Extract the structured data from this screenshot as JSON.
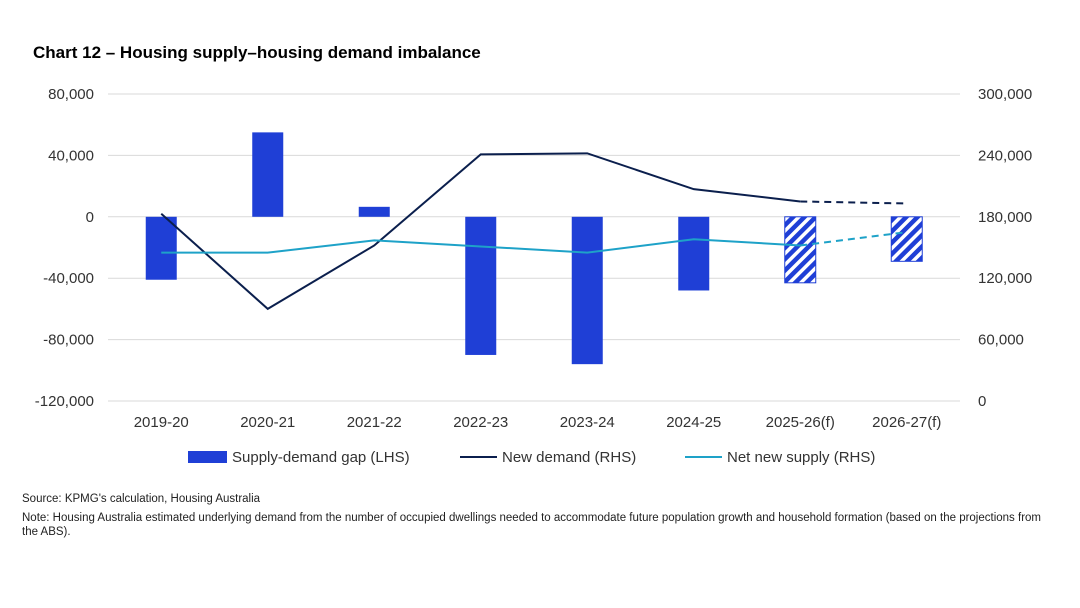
{
  "title": "Chart 12 – Housing supply–housing demand imbalance",
  "source": "Source: KPMG's calculation, Housing Australia",
  "note": "Note: Housing Australia estimated underlying demand from the number of occupied dwellings needed to accommodate future population growth and household formation (based on the projections from the ABS).",
  "chart_data": {
    "type": "bar",
    "title": "Chart 12 – Housing supply–housing demand imbalance",
    "categories": [
      "2019-20",
      "2020-21",
      "2021-22",
      "2022-23",
      "2023-24",
      "2024-25",
      "2025-26(f)",
      "2026-27(f)"
    ],
    "forecast_categories": [
      "2025-26(f)",
      "2026-27(f)"
    ],
    "y_left": {
      "range": [
        -120000,
        80000
      ],
      "ticks": [
        80000,
        40000,
        0,
        -40000,
        -80000,
        -120000
      ],
      "tick_labels": [
        "80,000",
        "40,000",
        "0",
        "-40,000",
        "-80,000",
        "-120,000"
      ]
    },
    "y_right": {
      "range": [
        0,
        300000
      ],
      "ticks": [
        300000,
        240000,
        180000,
        120000,
        60000,
        0
      ],
      "tick_labels": [
        "300,000",
        "240,000",
        "180,000",
        "120,000",
        "60,000",
        "0"
      ]
    },
    "grid": true,
    "legend_position": "bottom",
    "series": [
      {
        "name": "Supply-demand gap (LHS)",
        "type": "bar",
        "axis": "left",
        "color": "#1f3fd6",
        "values": [
          -41000,
          55000,
          6500,
          -90000,
          -96000,
          -48000,
          -43000,
          -29000
        ]
      },
      {
        "name": "New demand (RHS)",
        "type": "line",
        "axis": "right",
        "color": "#0b1f4d",
        "values": [
          183000,
          90000,
          152000,
          241000,
          242000,
          207000,
          195000,
          193000
        ]
      },
      {
        "name": "Net new supply (RHS)",
        "type": "line",
        "axis": "right",
        "color": "#1ea2c8",
        "values": [
          145000,
          145000,
          157000,
          151000,
          145000,
          158000,
          152000,
          165000
        ]
      }
    ]
  }
}
